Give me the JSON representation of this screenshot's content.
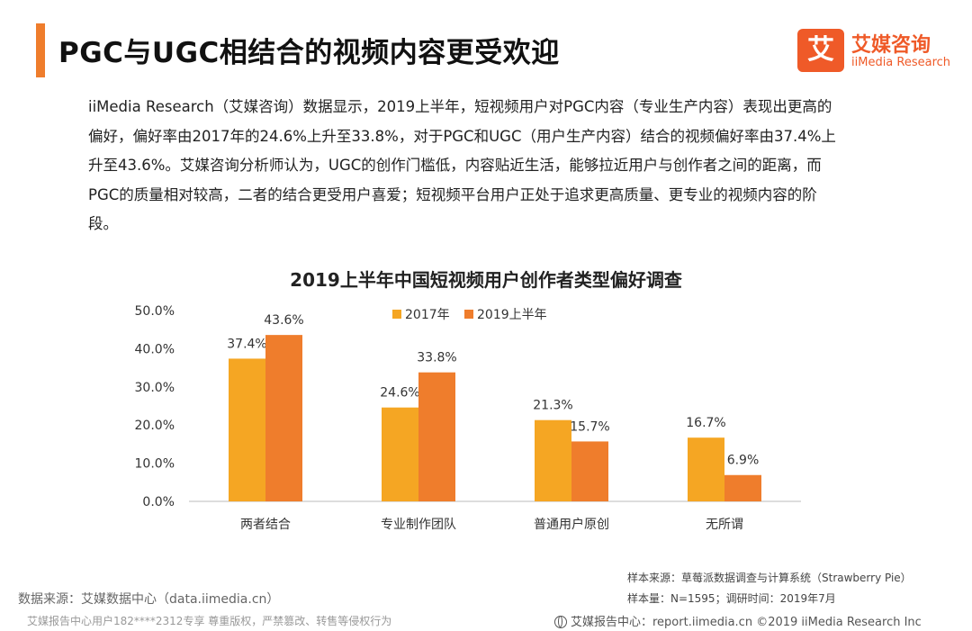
{
  "header": {
    "title": "PGC与UGC相结合的视频内容更受欢迎",
    "logo_mark": "艾",
    "logo_name": "艾媒咨询",
    "logo_sub": "iiMedia Research"
  },
  "paragraph": "iiMedia Research（艾媒咨询）数据显示，2019上半年，短视频用户对PGC内容（专业生产内容）表现出更高的偏好，偏好率由2017年的24.6%上升至33.8%，对于PGC和UGC（用户生产内容）结合的视频偏好率由37.4%上升至43.6%。艾媒咨询分析师认为，UGC的创作门槛低，内容贴近生活，能够拉近用户与创作者之间的距离，而PGC的质量相对较高，二者的结合更受用户喜爱；短视频平台用户正处于追求更高质量、更专业的视频内容的阶段。",
  "chart_data": {
    "type": "bar",
    "title": "2019上半年中国短视频用户创作者类型偏好调查",
    "categories": [
      "两者结合",
      "专业制作团队",
      "普通用户原创",
      "无所谓"
    ],
    "series": [
      {
        "name": "2017年",
        "values": [
          37.4,
          24.6,
          21.3,
          16.7
        ],
        "labels": [
          "37.4%",
          "24.6%",
          "21.3%",
          "16.7%"
        ]
      },
      {
        "name": "2019上半年",
        "values": [
          43.6,
          33.8,
          15.7,
          6.9
        ],
        "labels": [
          "43.6%",
          "33.8%",
          "15.7%",
          "6.9%"
        ]
      }
    ],
    "y_ticks": [
      "0.0%",
      "10.0%",
      "20.0%",
      "30.0%",
      "40.0%",
      "50.0%"
    ],
    "ylim": [
      0,
      50
    ],
    "legend_position": "top",
    "grid": false,
    "colors": {
      "2017年": "#f5a623",
      "2019上半年": "#ef7d2c"
    }
  },
  "sources": {
    "left": "数据来源：艾媒数据中心（data.iimedia.cn）",
    "right_line1": "样本来源：草莓派数据调查与计算系统（Strawberry Pie）",
    "right_line2": "样本量：N=1595；调研时间：2019年7月"
  },
  "footer": {
    "left": "艾媒报告中心用户182****2312专享 尊重版权，严禁篡改、转售等侵权行为",
    "right": "艾媒报告中心：report.iimedia.cn  ©2019  iiMedia Research  Inc"
  },
  "colors": {
    "accent": "#ef7d2c",
    "brand": "#ef5a28"
  }
}
